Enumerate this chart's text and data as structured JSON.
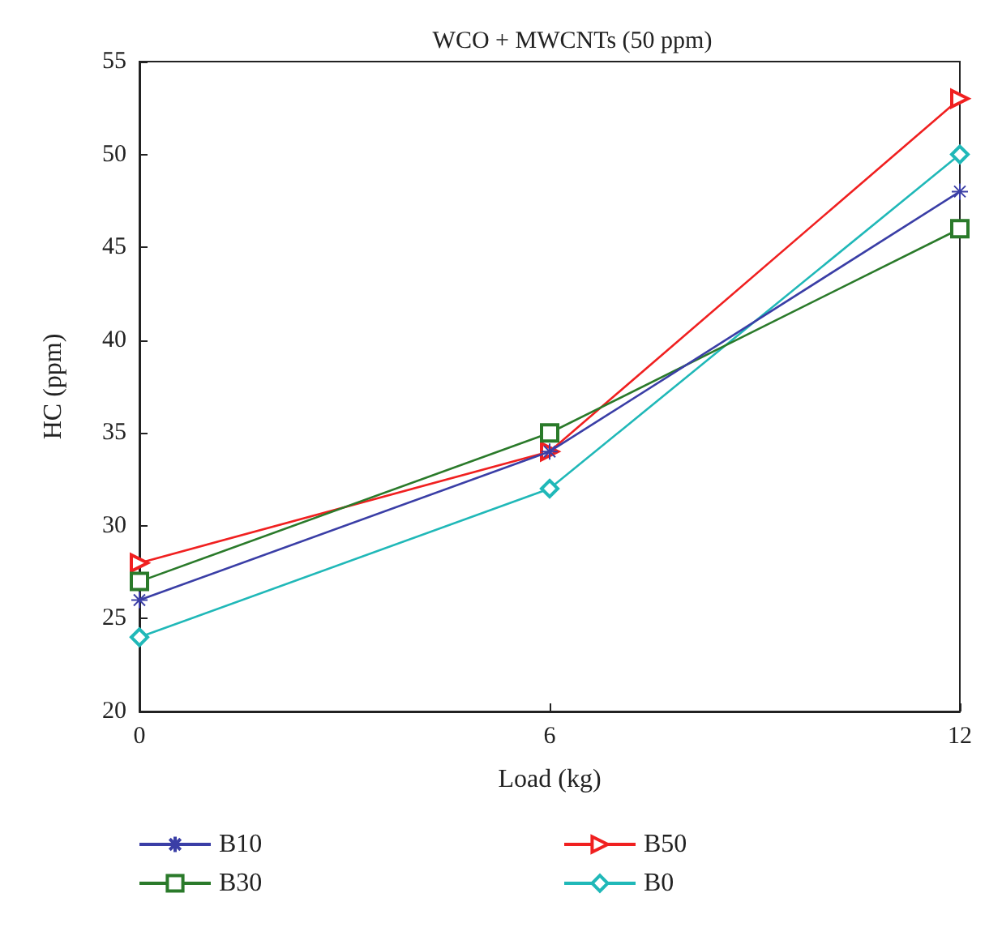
{
  "chart_data": {
    "type": "line",
    "title": "WCO + MWCNTs (50 ppm)",
    "xlabel": "Load (kg)",
    "ylabel": "HC (ppm)",
    "x": [
      0,
      6,
      12
    ],
    "xlim": [
      0,
      12
    ],
    "xticks": [
      0,
      6,
      12
    ],
    "ylim": [
      20,
      55
    ],
    "yticks": [
      20,
      25,
      30,
      35,
      40,
      45,
      50,
      55
    ],
    "grid": false,
    "legend": "bottom",
    "line_style": "solid",
    "series": [
      {
        "name": "B10",
        "color": "#3a3ea6",
        "marker": "cross",
        "values": [
          26,
          34,
          48
        ]
      },
      {
        "name": "B30",
        "color": "#2a7a2a",
        "marker": "square",
        "values": [
          27,
          35,
          46
        ]
      },
      {
        "name": "B50",
        "color": "#f02020",
        "marker": "triangle",
        "values": [
          28,
          34,
          53
        ]
      },
      {
        "name": "B0",
        "color": "#20b8b8",
        "marker": "diamond",
        "values": [
          24,
          32,
          50
        ]
      }
    ]
  }
}
